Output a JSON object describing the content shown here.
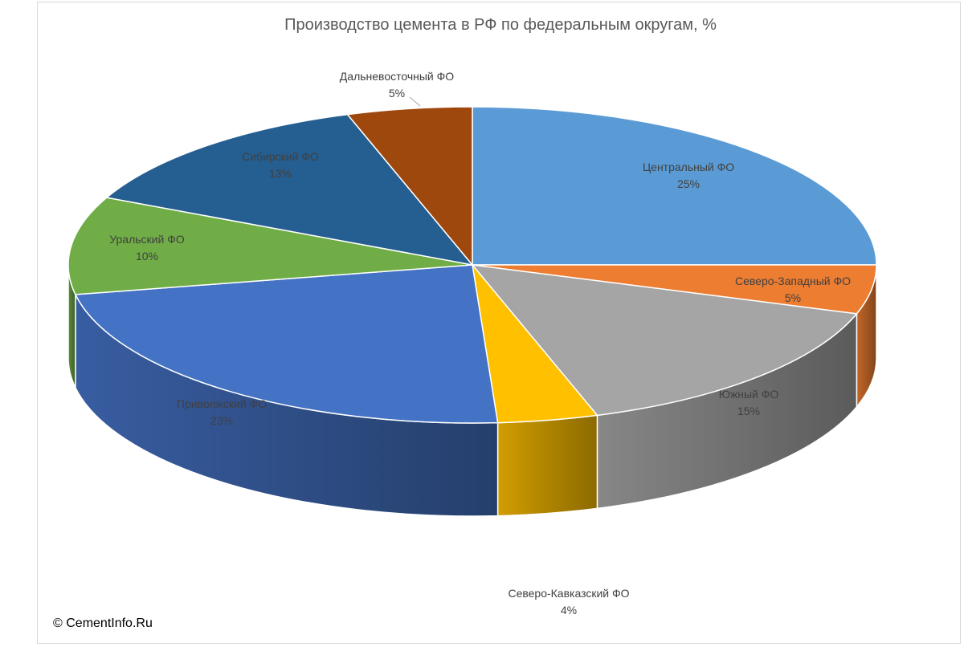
{
  "chart_data": {
    "type": "pie",
    "title": "Производство цемента в РФ по федеральным округам, %",
    "slices": [
      {
        "label": "Центральный ФО",
        "value": 25,
        "value_label": "25%",
        "color": "#5b9bd5"
      },
      {
        "label": "Северо-Западный ФО",
        "value": 5,
        "value_label": "5%",
        "color": "#ed7d31"
      },
      {
        "label": "Южный ФО",
        "value": 15,
        "value_label": "15%",
        "color": "#a5a5a5"
      },
      {
        "label": "Северо-Кавказский ФО",
        "value": 4,
        "value_label": "4%",
        "color": "#ffc000"
      },
      {
        "label": "Приволжский ФО",
        "value": 23,
        "value_label": "23%",
        "color": "#4472c4"
      },
      {
        "label": "Уральский ФО",
        "value": 10,
        "value_label": "10%",
        "color": "#70ad47"
      },
      {
        "label": "Сибирский ФО",
        "value": 13,
        "value_label": "13%",
        "color": "#255e91"
      },
      {
        "label": "Дальневосточный ФО",
        "value": 5,
        "value_label": "5%",
        "color": "#9e480e"
      }
    ],
    "three_d": true,
    "legend": "none"
  },
  "footer": {
    "copyright": "© CementInfo.Ru"
  }
}
